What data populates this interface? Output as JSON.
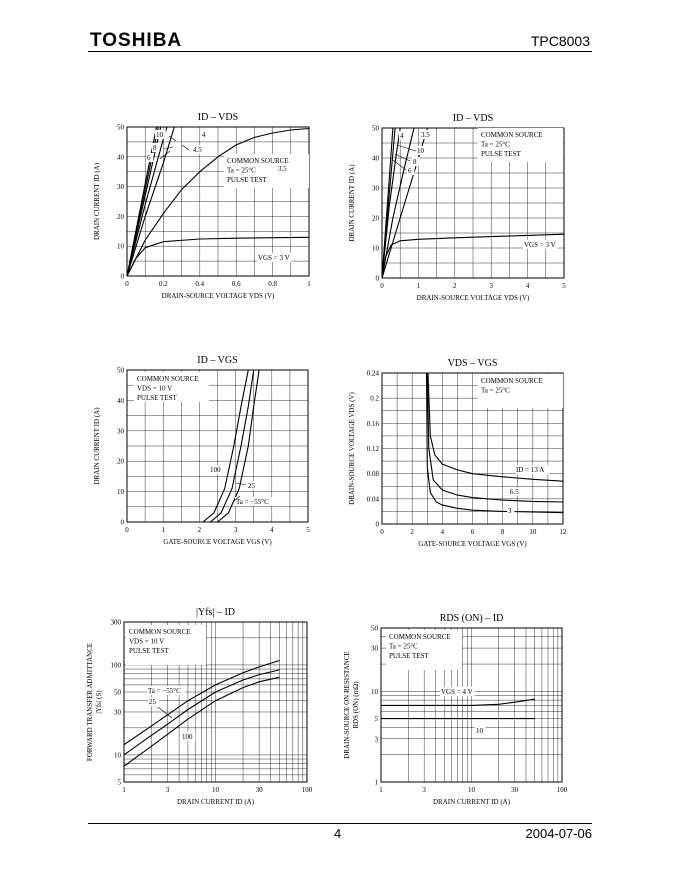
{
  "header": {
    "logo": "TOSHIBA",
    "part_number": "TPC8003"
  },
  "footer": {
    "page_number": "4",
    "date": "2004-07-06"
  },
  "chart_data": [
    {
      "id": "c1",
      "type": "line",
      "title": "ID – VDS",
      "xlabel": "DRAIN-SOURCE VOLTAGE  VDS  (V)",
      "ylabel": "DRAIN CURRENT  ID  (A)",
      "xlim": [
        0,
        1
      ],
      "ylim": [
        0,
        50
      ],
      "xticks": [
        0,
        0.2,
        0.4,
        0.6,
        0.8,
        1
      ],
      "yticks": [
        0,
        10,
        20,
        30,
        40,
        50
      ],
      "xscale": "linear",
      "yscale": "linear",
      "notes": [
        "COMMON SOURCE",
        "Ta = 25°C",
        "PULSE TEST"
      ],
      "series": [
        {
          "name": "VGS = 3 V",
          "points": [
            [
              0,
              0
            ],
            [
              0.05,
              6
            ],
            [
              0.1,
              9.5
            ],
            [
              0.2,
              11.5
            ],
            [
              0.4,
              12.4
            ],
            [
              0.6,
              12.7
            ],
            [
              1,
              13
            ]
          ]
        },
        {
          "name": "3.5",
          "points": [
            [
              0,
              0
            ],
            [
              0.1,
              12
            ],
            [
              0.2,
              21
            ],
            [
              0.3,
              29
            ],
            [
              0.4,
              35
            ],
            [
              0.5,
              40
            ],
            [
              0.6,
              44
            ],
            [
              0.7,
              46.5
            ],
            [
              0.8,
              48
            ],
            [
              0.9,
              49
            ],
            [
              1,
              49.5
            ]
          ]
        },
        {
          "name": "4",
          "points": [
            [
              0,
              0
            ],
            [
              0.1,
              20
            ],
            [
              0.2,
              38
            ],
            [
              0.26,
              50
            ]
          ]
        },
        {
          "name": "4.5",
          "points": [
            [
              0,
              0
            ],
            [
              0.1,
              24
            ],
            [
              0.2,
              46
            ],
            [
              0.22,
              50
            ]
          ]
        },
        {
          "name": "6",
          "points": [
            [
              0,
              0
            ],
            [
              0.1,
              27
            ],
            [
              0.185,
              50
            ]
          ]
        },
        {
          "name": "8",
          "points": [
            [
              0,
              0
            ],
            [
              0.1,
              29
            ],
            [
              0.172,
              50
            ]
          ]
        },
        {
          "name": "10",
          "points": [
            [
              0,
              0
            ],
            [
              0.1,
              31
            ],
            [
              0.162,
              50
            ]
          ]
        }
      ]
    },
    {
      "id": "c2",
      "type": "line",
      "title": "ID – VDS",
      "xlabel": "DRAIN-SOURCE VOLTAGE  VDS  (V)",
      "ylabel": "DRAIN CURRENT  ID  (A)",
      "xlim": [
        0,
        5
      ],
      "ylim": [
        0,
        50
      ],
      "xticks": [
        0,
        1,
        2,
        3,
        4,
        5
      ],
      "yticks": [
        0,
        10,
        20,
        30,
        40,
        50
      ],
      "xscale": "linear",
      "yscale": "linear",
      "notes": [
        "COMMON SOURCE",
        "Ta = 25°C",
        "PULSE TEST"
      ],
      "series": [
        {
          "name": "VGS = 3 V",
          "points": [
            [
              0,
              0
            ],
            [
              0.1,
              7
            ],
            [
              0.25,
              11
            ],
            [
              0.5,
              12.4
            ],
            [
              1,
              12.9
            ],
            [
              2,
              13.4
            ],
            [
              3,
              13.8
            ],
            [
              4,
              14.2
            ],
            [
              5,
              14.6
            ]
          ]
        },
        {
          "name": "3.5",
          "points": [
            [
              0,
              0
            ],
            [
              0.3,
              12
            ],
            [
              0.6,
              24
            ],
            [
              0.9,
              36
            ],
            [
              1.1,
              44
            ],
            [
              1.25,
              50
            ]
          ]
        },
        {
          "name": "4",
          "points": [
            [
              0,
              0
            ],
            [
              0.3,
              20
            ],
            [
              0.6,
              36
            ],
            [
              0.8,
              46
            ],
            [
              0.88,
              50
            ]
          ]
        },
        {
          "name": "6",
          "points": [
            [
              0,
              0
            ],
            [
              0.2,
              24
            ],
            [
              0.4,
              42
            ],
            [
              0.5,
              50
            ]
          ]
        },
        {
          "name": "8",
          "points": [
            [
              0,
              0
            ],
            [
              0.2,
              28
            ],
            [
              0.36,
              50
            ]
          ]
        },
        {
          "name": "10",
          "points": [
            [
              0,
              0
            ],
            [
              0.15,
              25
            ],
            [
              0.3,
              50
            ]
          ]
        }
      ]
    },
    {
      "id": "c3",
      "type": "line",
      "title": "ID – VGS",
      "xlabel": "GATE-SOURCE VOLTAGE  VGS  (V)",
      "ylabel": "DRAIN CURRENT  ID  (A)",
      "xlim": [
        0,
        5
      ],
      "ylim": [
        0,
        50
      ],
      "xticks": [
        0,
        1,
        2,
        3,
        4,
        5
      ],
      "yticks": [
        0,
        10,
        20,
        30,
        40,
        50
      ],
      "xscale": "linear",
      "yscale": "linear",
      "notes": [
        "COMMON SOURCE",
        "VDS = 10 V",
        "PULSE TEST"
      ],
      "series": [
        {
          "name": "100",
          "points": [
            [
              2.1,
              0
            ],
            [
              2.4,
              3
            ],
            [
              2.7,
              11
            ],
            [
              2.95,
              25
            ],
            [
              3.15,
              38
            ],
            [
              3.35,
              50
            ]
          ]
        },
        {
          "name": "25",
          "points": [
            [
              2.3,
              0
            ],
            [
              2.6,
              3
            ],
            [
              2.9,
              11
            ],
            [
              3.15,
              25
            ],
            [
              3.35,
              38
            ],
            [
              3.5,
              50
            ]
          ]
        },
        {
          "name": "Ta = −55°C",
          "points": [
            [
              2.5,
              0
            ],
            [
              2.8,
              3
            ],
            [
              3.1,
              11
            ],
            [
              3.35,
              25
            ],
            [
              3.5,
              38
            ],
            [
              3.65,
              50
            ]
          ]
        }
      ]
    },
    {
      "id": "c4",
      "type": "line",
      "title": "VDS – VGS",
      "xlabel": "GATE-SOURCE VOLTAGE  VGS  (V)",
      "ylabel": "DRAIN-SOURCE VOLTAGE  VDS  (V)",
      "xlim": [
        0,
        12
      ],
      "ylim": [
        0,
        0.24
      ],
      "xticks": [
        0,
        2,
        4,
        6,
        8,
        10,
        12
      ],
      "yticks": [
        0,
        0.04,
        0.08,
        0.12,
        0.16,
        0.2,
        0.24
      ],
      "xscale": "linear",
      "yscale": "linear",
      "notes": [
        "COMMON SOURCE",
        "Ta = 25°C"
      ],
      "series": [
        {
          "name": "ID = 13 A",
          "points": [
            [
              3.05,
              0.24
            ],
            [
              3.2,
              0.14
            ],
            [
              3.5,
              0.11
            ],
            [
              4,
              0.095
            ],
            [
              5,
              0.086
            ],
            [
              6,
              0.08
            ],
            [
              8,
              0.075
            ],
            [
              10,
              0.071
            ],
            [
              12,
              0.068
            ]
          ]
        },
        {
          "name": "6.5",
          "points": [
            [
              3.0,
              0.24
            ],
            [
              3.1,
              0.12
            ],
            [
              3.4,
              0.07
            ],
            [
              4,
              0.054
            ],
            [
              5,
              0.046
            ],
            [
              6,
              0.042
            ],
            [
              8,
              0.038
            ],
            [
              10,
              0.036
            ],
            [
              12,
              0.035
            ]
          ]
        },
        {
          "name": "3",
          "points": [
            [
              2.95,
              0.24
            ],
            [
              3.0,
              0.09
            ],
            [
              3.2,
              0.05
            ],
            [
              3.6,
              0.035
            ],
            [
              4,
              0.03
            ],
            [
              5,
              0.025
            ],
            [
              6,
              0.022
            ],
            [
              8,
              0.02
            ],
            [
              10,
              0.019
            ],
            [
              12,
              0.018
            ]
          ]
        }
      ]
    },
    {
      "id": "c5",
      "type": "line",
      "title": "|Yfs| – ID",
      "xlabel": "DRAIN CURRENT  ID  (A)",
      "ylabel": "FORWARD TRANSFER ADMITTANCE",
      "ylabel2": "|Yfs|  (S)",
      "xlim": [
        1,
        100
      ],
      "ylim": [
        5,
        300
      ],
      "xticks": [
        1,
        3,
        10,
        30,
        100
      ],
      "yticks": [
        5,
        10,
        30,
        50,
        100,
        300
      ],
      "xscale": "log",
      "yscale": "log",
      "notes": [
        "COMMON SOURCE",
        "VDS = 10 V",
        "PULSE TEST"
      ],
      "series": [
        {
          "name": "Ta = −55°C",
          "points": [
            [
              1,
              13
            ],
            [
              2,
              21
            ],
            [
              3,
              28
            ],
            [
              5,
              40
            ],
            [
              10,
              60
            ],
            [
              20,
              82
            ],
            [
              30,
              95
            ],
            [
              50,
              112
            ]
          ]
        },
        {
          "name": "25",
          "points": [
            [
              1,
              10
            ],
            [
              2,
              16.5
            ],
            [
              3,
              22
            ],
            [
              5,
              32
            ],
            [
              10,
              50
            ],
            [
              20,
              68
            ],
            [
              30,
              78
            ],
            [
              50,
              88
            ]
          ]
        },
        {
          "name": "100",
          "points": [
            [
              1,
              7.5
            ],
            [
              2,
              12.5
            ],
            [
              3,
              17
            ],
            [
              5,
              25
            ],
            [
              10,
              40
            ],
            [
              20,
              56
            ],
            [
              30,
              65
            ],
            [
              50,
              73
            ]
          ]
        }
      ]
    },
    {
      "id": "c6",
      "type": "line",
      "title": "RDS (ON) – ID",
      "xlabel": "DRAIN CURRENT  ID  (A)",
      "ylabel": "DRAIN-SOURCE ON RESISTANCE",
      "ylabel2": "RDS (ON)  (mΩ)",
      "xlim": [
        1,
        100
      ],
      "ylim": [
        1,
        50
      ],
      "xticks": [
        1,
        3,
        10,
        30,
        100
      ],
      "yticks": [
        1,
        3,
        5,
        10,
        30,
        50
      ],
      "xscale": "log",
      "yscale": "log",
      "notes": [
        "COMMON SOURCE",
        "Ta = 25°C",
        "PULSE TEST"
      ],
      "series": [
        {
          "name": "VGS = 4 V",
          "points": [
            [
              1,
              7
            ],
            [
              3,
              7
            ],
            [
              10,
              7
            ],
            [
              20,
              7.2
            ],
            [
              30,
              7.6
            ],
            [
              50,
              8.2
            ]
          ]
        },
        {
          "name": "10",
          "points": [
            [
              1,
              5
            ],
            [
              3,
              5
            ],
            [
              10,
              5
            ],
            [
              30,
              5
            ],
            [
              50,
              5
            ]
          ]
        }
      ]
    }
  ]
}
